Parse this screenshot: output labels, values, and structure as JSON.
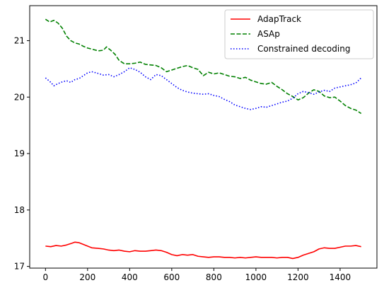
{
  "chart_data": {
    "type": "line",
    "title": "",
    "xlabel": "",
    "ylabel": "",
    "xlim": [
      -75,
      1575
    ],
    "ylim": [
      16.97,
      21.62
    ],
    "x_ticks": [
      0,
      200,
      400,
      600,
      800,
      1000,
      1200,
      1400
    ],
    "y_ticks": [
      17,
      18,
      19,
      20,
      21
    ],
    "grid": false,
    "legend_position": "upper right",
    "series": [
      {
        "name": "AdapTrack",
        "color": "#ff0000",
        "style": "solid",
        "x": [
          0,
          25,
          50,
          75,
          100,
          125,
          140,
          160,
          180,
          200,
          220,
          250,
          275,
          300,
          325,
          350,
          375,
          400,
          425,
          450,
          475,
          500,
          525,
          550,
          575,
          600,
          625,
          650,
          675,
          700,
          725,
          750,
          775,
          800,
          825,
          850,
          875,
          900,
          925,
          950,
          975,
          1000,
          1025,
          1050,
          1075,
          1100,
          1125,
          1150,
          1175,
          1200,
          1225,
          1250,
          1275,
          1300,
          1325,
          1350,
          1375,
          1400,
          1425,
          1450,
          1475,
          1500
        ],
        "y": [
          17.36,
          17.35,
          17.37,
          17.36,
          17.38,
          17.41,
          17.43,
          17.42,
          17.39,
          17.36,
          17.33,
          17.32,
          17.31,
          17.29,
          17.28,
          17.29,
          17.27,
          17.26,
          17.28,
          17.27,
          17.27,
          17.28,
          17.29,
          17.28,
          17.25,
          17.21,
          17.19,
          17.21,
          17.2,
          17.21,
          17.18,
          17.17,
          17.16,
          17.17,
          17.17,
          17.16,
          17.16,
          17.15,
          17.16,
          17.15,
          17.16,
          17.17,
          17.16,
          17.16,
          17.16,
          17.15,
          17.16,
          17.16,
          17.14,
          17.16,
          17.2,
          17.23,
          17.26,
          17.31,
          17.33,
          17.32,
          17.32,
          17.34,
          17.36,
          17.36,
          17.37,
          17.35
        ]
      },
      {
        "name": "ASAp",
        "color": "#008000",
        "style": "dashed",
        "x": [
          0,
          20,
          40,
          60,
          80,
          100,
          120,
          140,
          160,
          180,
          200,
          220,
          250,
          275,
          290,
          310,
          330,
          350,
          375,
          400,
          425,
          450,
          475,
          500,
          525,
          550,
          575,
          600,
          625,
          650,
          675,
          700,
          725,
          750,
          775,
          800,
          825,
          850,
          875,
          900,
          925,
          950,
          975,
          1000,
          1025,
          1050,
          1075,
          1100,
          1125,
          1150,
          1175,
          1200,
          1225,
          1250,
          1275,
          1300,
          1325,
          1350,
          1375,
          1400,
          1425,
          1450,
          1475,
          1500
        ],
        "y": [
          21.38,
          21.33,
          21.36,
          21.31,
          21.22,
          21.08,
          21.0,
          20.96,
          20.94,
          20.9,
          20.87,
          20.85,
          20.82,
          20.83,
          20.89,
          20.83,
          20.76,
          20.65,
          20.59,
          20.59,
          20.6,
          20.62,
          20.58,
          20.57,
          20.56,
          20.52,
          20.45,
          20.48,
          20.51,
          20.54,
          20.56,
          20.52,
          20.49,
          20.38,
          20.44,
          20.41,
          20.43,
          20.4,
          20.37,
          20.36,
          20.33,
          20.35,
          20.3,
          20.27,
          20.24,
          20.23,
          20.26,
          20.19,
          20.13,
          20.06,
          20.01,
          19.95,
          19.99,
          20.07,
          20.13,
          20.1,
          20.02,
          19.99,
          20.0,
          19.93,
          19.85,
          19.8,
          19.77,
          19.71
        ]
      },
      {
        "name": "Constrained decoding",
        "color": "#0000ff",
        "style": "dotted",
        "x": [
          0,
          20,
          40,
          60,
          80,
          100,
          120,
          140,
          160,
          180,
          200,
          220,
          250,
          275,
          300,
          325,
          350,
          375,
          400,
          425,
          450,
          475,
          500,
          525,
          550,
          575,
          600,
          625,
          650,
          675,
          700,
          725,
          750,
          775,
          800,
          825,
          850,
          875,
          900,
          925,
          950,
          975,
          1000,
          1025,
          1050,
          1075,
          1100,
          1125,
          1150,
          1175,
          1200,
          1225,
          1250,
          1275,
          1300,
          1325,
          1350,
          1375,
          1400,
          1425,
          1450,
          1475,
          1500
        ],
        "y": [
          20.34,
          20.28,
          20.2,
          20.24,
          20.27,
          20.29,
          20.26,
          20.31,
          20.33,
          20.38,
          20.43,
          20.45,
          20.42,
          20.39,
          20.4,
          20.36,
          20.4,
          20.45,
          20.52,
          20.49,
          20.44,
          20.36,
          20.31,
          20.4,
          20.38,
          20.31,
          20.24,
          20.17,
          20.12,
          20.09,
          20.07,
          20.06,
          20.05,
          20.06,
          20.03,
          20.01,
          19.96,
          19.92,
          19.86,
          19.83,
          19.8,
          19.78,
          19.8,
          19.83,
          19.82,
          19.85,
          19.88,
          19.91,
          19.93,
          19.98,
          20.06,
          20.1,
          20.08,
          20.05,
          20.09,
          20.12,
          20.1,
          20.16,
          20.18,
          20.2,
          20.22,
          20.25,
          20.34
        ]
      }
    ]
  }
}
